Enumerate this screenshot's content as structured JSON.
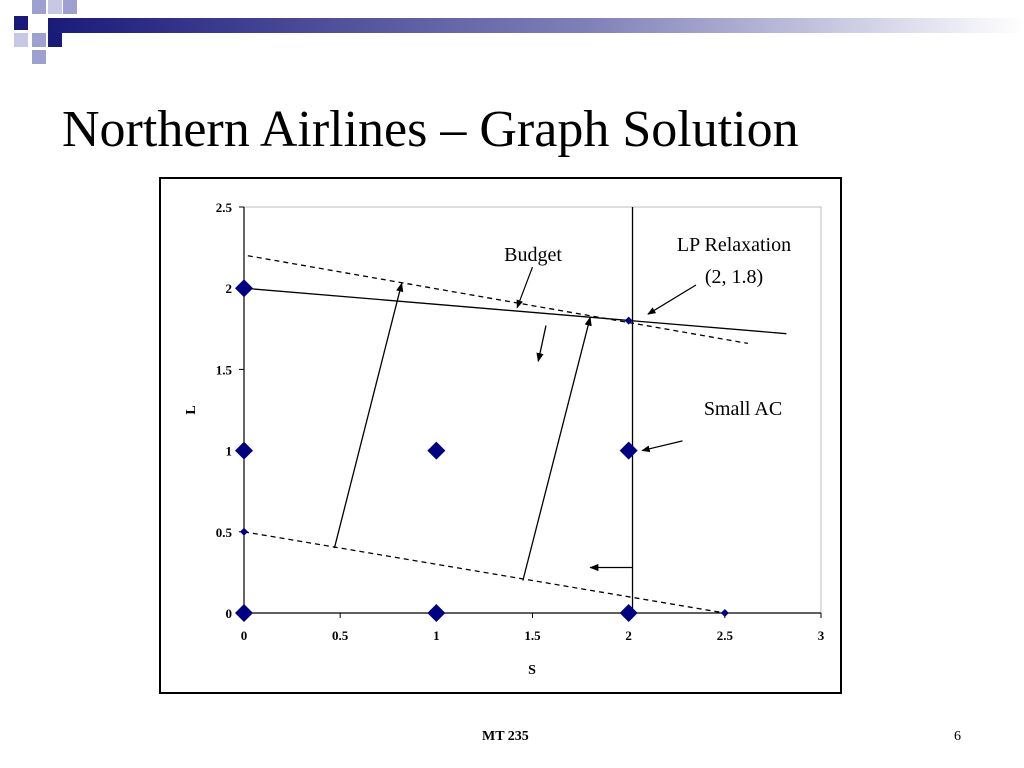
{
  "slide": {
    "title": "Northern Airlines – Graph Solution",
    "footer": "MT 235",
    "page_number": "6"
  },
  "colors": {
    "header_dark": "#1a1a7a",
    "header_light": "#a0a0d0",
    "marker": "#000080",
    "line": "#000000"
  },
  "chart_data": {
    "type": "scatter",
    "title": "",
    "xlabel": "S",
    "ylabel": "L",
    "xlim": [
      0,
      3
    ],
    "ylim": [
      0,
      2.5
    ],
    "x_ticks": [
      0,
      0.5,
      1,
      1.5,
      2,
      2.5,
      3
    ],
    "y_ticks": [
      0,
      0.5,
      1,
      1.5,
      2,
      2.5
    ],
    "x_tick_labels": [
      "0",
      "0.5",
      "1",
      "1.5",
      "2",
      "2.5",
      "3"
    ],
    "y_tick_labels": [
      "0",
      "0.5",
      "1",
      "1.5",
      "2",
      "2.5"
    ],
    "grid": false,
    "series": [
      {
        "points": [
          {
            "x": 0,
            "y": 0
          },
          {
            "x": 1,
            "y": 0
          },
          {
            "x": 2,
            "y": 0
          },
          {
            "x": 0,
            "y": 1
          },
          {
            "x": 1,
            "y": 1
          },
          {
            "x": 2,
            "y": 1
          },
          {
            "x": 0,
            "y": 2
          }
        ],
        "marker": "diamond-large"
      },
      {
        "points": [
          {
            "x": 0,
            "y": 0.5
          },
          {
            "x": 2.5,
            "y": 0
          },
          {
            "x": 2,
            "y": 1.8
          }
        ],
        "marker": "diamond-small"
      }
    ],
    "lines": [
      {
        "from": [
          0,
          2
        ],
        "to": [
          2.82,
          1.72
        ],
        "style": "solid"
      },
      {
        "from": [
          0.02,
          2.2
        ],
        "to": [
          2.62,
          1.66
        ],
        "style": "dashed"
      },
      {
        "from": [
          0,
          0.5
        ],
        "to": [
          2.5,
          0
        ],
        "style": "dashed"
      },
      {
        "from": [
          2.02,
          0
        ],
        "to": [
          2.02,
          2.5
        ],
        "style": "solid"
      }
    ],
    "arrows": [
      {
        "from": [
          0.47,
          0.4
        ],
        "to": [
          0.82,
          2.03
        ]
      },
      {
        "from": [
          1.45,
          0.2
        ],
        "to": [
          1.8,
          1.82
        ]
      },
      {
        "from": [
          1.57,
          1.77
        ],
        "to": [
          1.53,
          1.55
        ]
      },
      {
        "from": [
          2.02,
          0.28
        ],
        "to": [
          1.8,
          0.28
        ]
      }
    ],
    "annotations": [
      {
        "text": "Budget",
        "pointer_from": [
          1.5,
          2.13
        ],
        "pointer_to": [
          1.42,
          1.88
        ]
      },
      {
        "text": "LP Relaxation",
        "text2": "(2, 1.8)",
        "pointer_from": [
          2.35,
          2.02
        ],
        "pointer_to": [
          2.1,
          1.84
        ]
      },
      {
        "text": "Small AC",
        "pointer_from": [
          2.28,
          1.06
        ],
        "pointer_to": [
          2.07,
          1.0
        ]
      }
    ]
  }
}
